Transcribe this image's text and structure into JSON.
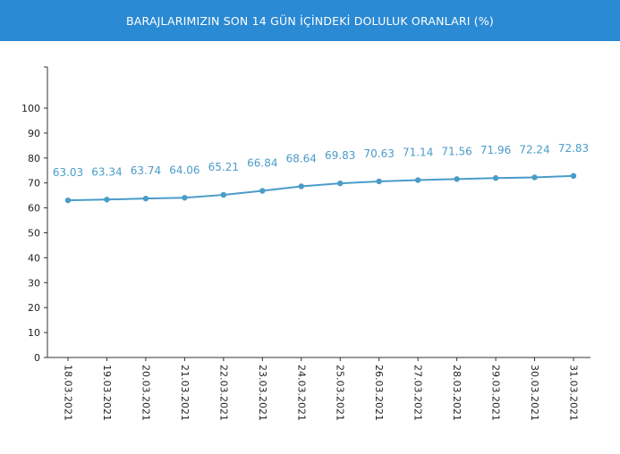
{
  "header": {
    "title": "BARAJLARIMIZIN SON 14 GÜN İÇİNDEKİ DOLULUK ORANLARI (%)"
  },
  "colors": {
    "header_bg": "#2a8ad3",
    "series": "#4a9cc9",
    "axis": "#333333"
  },
  "chart_data": {
    "type": "line",
    "title": "BARAJLARIMIZIN SON 14 GÜN İÇİNDEKİ DOLULUK ORANLARI (%)",
    "categories": [
      "18.03.2021",
      "19.03.2021",
      "20.03.2021",
      "21.03.2021",
      "22.03.2021",
      "23.03.2021",
      "24.03.2021",
      "25.03.2021",
      "26.03.2021",
      "27.03.2021",
      "28.03.2021",
      "29.03.2021",
      "30.03.2021",
      "31.03.2021"
    ],
    "series": [
      {
        "values": [
          63.03,
          63.34,
          63.74,
          64.06,
          65.21,
          66.84,
          68.64,
          69.83,
          70.63,
          71.14,
          71.56,
          71.96,
          72.24,
          72.83
        ]
      }
    ],
    "data_labels": [
      "63.03",
      "63.34",
      "63.74",
      "64.06",
      "65.21",
      "66.84",
      "68.64",
      "69.83",
      "70.63",
      "71.14",
      "71.56",
      "71.96",
      "72.24",
      "72.83"
    ],
    "yticks": [
      "0",
      "10",
      "20",
      "30",
      "40",
      "50",
      "60",
      "70",
      "80",
      "90",
      "100"
    ],
    "ylim": [
      0,
      100
    ],
    "grid": false,
    "legend": "none",
    "xlabel": "",
    "ylabel": ""
  }
}
